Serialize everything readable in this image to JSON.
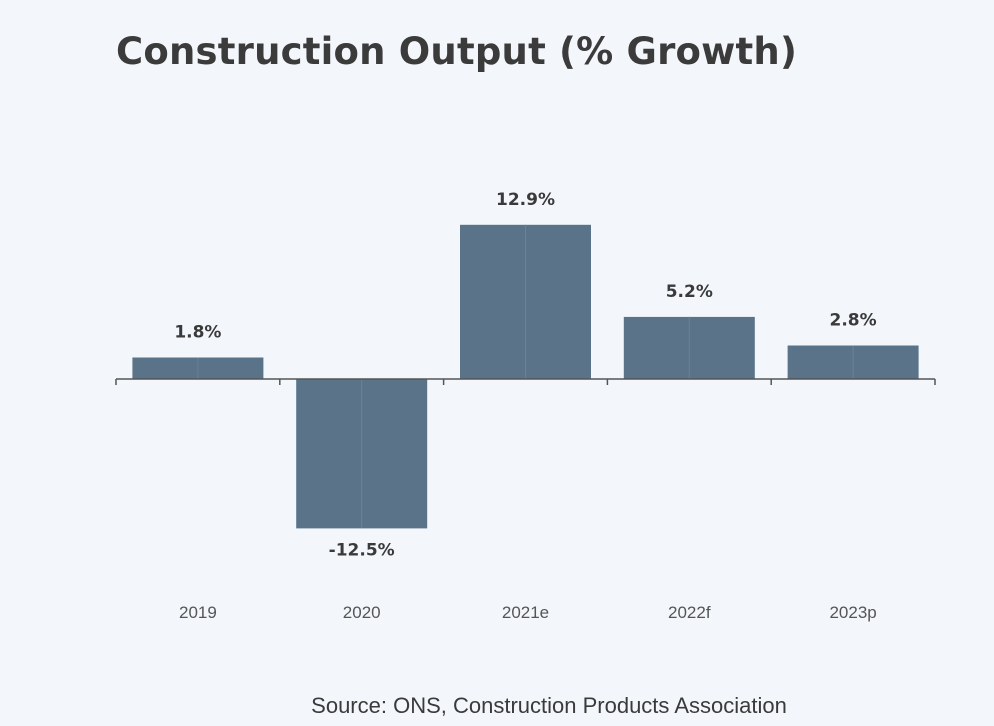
{
  "title": "Construction Output (% Growth)",
  "source": "Source: ONS, Construction Products Association",
  "colors": {
    "bar": "#5a7388",
    "axis": "#555555",
    "text": "#3a3a3a",
    "background": "#f3f7fc"
  },
  "chart_data": {
    "type": "bar",
    "title": "Construction Output (% Growth)",
    "categories": [
      "2019",
      "2020",
      "2021e",
      "2022f",
      "2023p"
    ],
    "values": [
      1.8,
      -12.5,
      12.9,
      5.2,
      2.8
    ],
    "data_labels": [
      "1.8%",
      "-12.5%",
      "12.9%",
      "5.2%",
      "2.8%"
    ],
    "xlabel": "",
    "ylabel": "",
    "ylim": [
      -16,
      18
    ],
    "grid": false,
    "legend": "none"
  }
}
